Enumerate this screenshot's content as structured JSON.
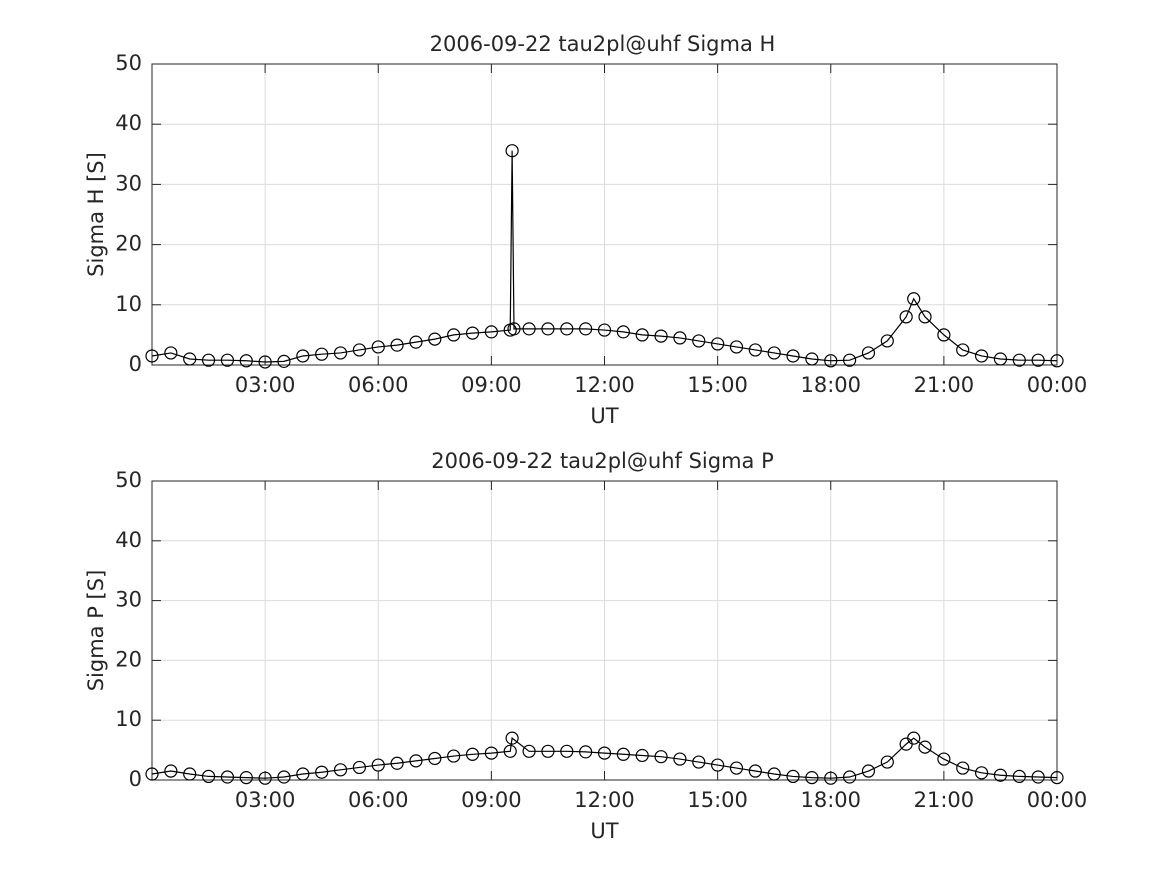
{
  "chart_data": [
    {
      "type": "line",
      "title": "2006-09-22  tau2pl@uhf Sigma H",
      "x_label": "UT",
      "y_label": "Sigma H [S]",
      "xlim": [
        0,
        24
      ],
      "ylim": [
        0,
        50
      ],
      "xticks": [
        {
          "value": 3,
          "label": "03:00"
        },
        {
          "value": 6,
          "label": "06:00"
        },
        {
          "value": 9,
          "label": "09:00"
        },
        {
          "value": 12,
          "label": "12:00"
        },
        {
          "value": 15,
          "label": "15:00"
        },
        {
          "value": 18,
          "label": "18:00"
        },
        {
          "value": 21,
          "label": "21:00"
        },
        {
          "value": 24,
          "label": "00:00"
        }
      ],
      "yticks": [
        0,
        10,
        20,
        30,
        40,
        50
      ],
      "grid": true,
      "color": "#000000",
      "x": [
        0,
        0.5,
        1,
        1.5,
        2,
        2.5,
        3,
        3.5,
        4,
        4.5,
        5,
        5.5,
        6,
        6.5,
        7,
        7.5,
        8,
        8.5,
        9,
        9.5,
        9.55,
        9.6,
        10,
        10.5,
        11,
        11.5,
        12,
        12.5,
        13,
        13.5,
        14,
        14.5,
        15,
        15.5,
        16,
        16.5,
        17,
        17.5,
        18,
        18.5,
        19,
        19.5,
        20,
        20.2,
        20.5,
        21,
        21.5,
        22,
        22.5,
        23,
        23.5,
        24
      ],
      "values": [
        1.5,
        2,
        1,
        0.8,
        0.8,
        0.7,
        0.5,
        0.6,
        1.5,
        1.8,
        2,
        2.5,
        3,
        3.3,
        3.8,
        4.3,
        5,
        5.3,
        5.5,
        5.8,
        35.6,
        6,
        6,
        6,
        6,
        6,
        5.8,
        5.5,
        5,
        4.8,
        4.5,
        4,
        3.5,
        3,
        2.5,
        2,
        1.5,
        1,
        0.7,
        0.8,
        2,
        4,
        8,
        11,
        8,
        5,
        2.5,
        1.5,
        1,
        0.8,
        0.8,
        0.7
      ]
    },
    {
      "type": "line",
      "title": "2006-09-22  tau2pl@uhf Sigma P",
      "x_label": "UT",
      "y_label": "Sigma P [S]",
      "xlim": [
        0,
        24
      ],
      "ylim": [
        0,
        50
      ],
      "xticks": [
        {
          "value": 3,
          "label": "03:00"
        },
        {
          "value": 6,
          "label": "06:00"
        },
        {
          "value": 9,
          "label": "09:00"
        },
        {
          "value": 12,
          "label": "12:00"
        },
        {
          "value": 15,
          "label": "15:00"
        },
        {
          "value": 18,
          "label": "18:00"
        },
        {
          "value": 21,
          "label": "21:00"
        },
        {
          "value": 24,
          "label": "00:00"
        }
      ],
      "yticks": [
        0,
        10,
        20,
        30,
        40,
        50
      ],
      "grid": true,
      "color": "#000000",
      "x": [
        0,
        0.5,
        1,
        1.5,
        2,
        2.5,
        3,
        3.5,
        4,
        4.5,
        5,
        5.5,
        6,
        6.5,
        7,
        7.5,
        8,
        8.5,
        9,
        9.5,
        9.55,
        10,
        10.5,
        11,
        11.5,
        12,
        12.5,
        13,
        13.5,
        14,
        14.5,
        15,
        15.5,
        16,
        16.5,
        17,
        17.5,
        18,
        18.5,
        19,
        19.5,
        20,
        20.2,
        20.5,
        21,
        21.5,
        22,
        22.5,
        23,
        23.5,
        24
      ],
      "values": [
        1,
        1.5,
        1,
        0.6,
        0.5,
        0.4,
        0.3,
        0.5,
        1,
        1.3,
        1.7,
        2.1,
        2.5,
        2.8,
        3.2,
        3.6,
        4,
        4.3,
        4.5,
        4.8,
        7,
        4.8,
        4.8,
        4.8,
        4.7,
        4.5,
        4.3,
        4.1,
        3.9,
        3.5,
        3,
        2.5,
        2,
        1.5,
        1,
        0.6,
        0.4,
        0.3,
        0.5,
        1.5,
        3,
        6,
        7,
        5.5,
        3.5,
        2,
        1.2,
        0.8,
        0.6,
        0.5,
        0.4
      ]
    }
  ]
}
